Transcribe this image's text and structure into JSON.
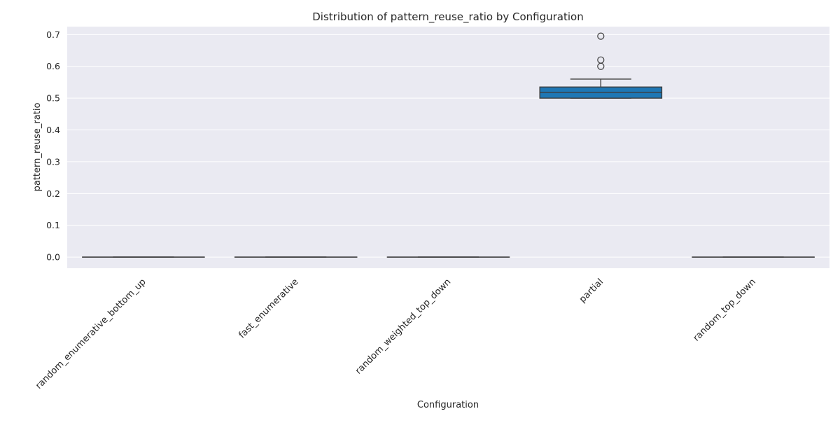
{
  "chart_data": {
    "type": "box",
    "title": "Distribution of pattern_reuse_ratio by Configuration",
    "xlabel": "Configuration",
    "ylabel": "pattern_reuse_ratio",
    "ylim": [
      -0.035,
      0.725
    ],
    "yticks": [
      0.0,
      0.1,
      0.2,
      0.3,
      0.4,
      0.5,
      0.6,
      0.7
    ],
    "ytick_labels": [
      "0.0",
      "0.1",
      "0.2",
      "0.3",
      "0.4",
      "0.5",
      "0.6",
      "0.7"
    ],
    "grid": true,
    "categories": [
      "random_enumerative_bottom_up",
      "fast_enumerative",
      "random_weighted_top_down",
      "partial",
      "random_top_down"
    ],
    "boxes": [
      {
        "category": "random_enumerative_bottom_up",
        "whisker_low": 0.0,
        "q1": 0.0,
        "median": 0.0,
        "q3": 0.0,
        "whisker_high": 0.0,
        "outliers": []
      },
      {
        "category": "fast_enumerative",
        "whisker_low": 0.0,
        "q1": 0.0,
        "median": 0.0,
        "q3": 0.0,
        "whisker_high": 0.0,
        "outliers": []
      },
      {
        "category": "random_weighted_top_down",
        "whisker_low": 0.0,
        "q1": 0.0,
        "median": 0.0,
        "q3": 0.0,
        "whisker_high": 0.0,
        "outliers": []
      },
      {
        "category": "partial",
        "whisker_low": 0.5,
        "q1": 0.5,
        "median": 0.518,
        "q3": 0.535,
        "whisker_high": 0.56,
        "outliers": [
          0.6,
          0.62,
          0.695
        ]
      },
      {
        "category": "random_top_down",
        "whisker_low": 0.0,
        "q1": 0.0,
        "median": 0.0,
        "q3": 0.0,
        "whisker_high": 0.0,
        "outliers": []
      }
    ],
    "colors": {
      "plot_background": "#eaeaf2",
      "grid": "#ffffff",
      "box_fill": "#1f77b4",
      "line": "#3d3d3d",
      "text": "#262626"
    }
  }
}
